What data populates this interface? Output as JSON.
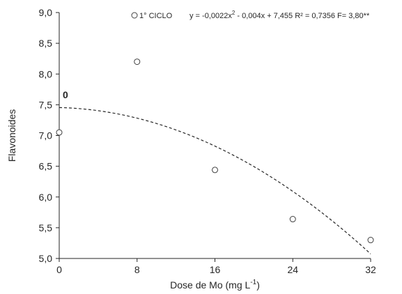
{
  "chart_data": {
    "type": "scatter",
    "title": "",
    "xlabel": "Dose de Mo (mg L",
    "xlabel_sup": "-1",
    "xlabel_close": ")",
    "ylabel": "Flavonoides",
    "xlim": [
      0,
      32
    ],
    "ylim": [
      5.0,
      9.0
    ],
    "xticks": [
      0,
      8,
      16,
      24,
      32
    ],
    "yticks": [
      5.0,
      5.5,
      6.0,
      6.5,
      7.0,
      7.5,
      8.0,
      8.5,
      9.0
    ],
    "ytick_labels": [
      "5,0",
      "5,5",
      "6,0",
      "6,5",
      "7,0",
      "7,5",
      "8,0",
      "8,5",
      "9,0"
    ],
    "grid": false,
    "legend_position": "top",
    "series": [
      {
        "name": "1° CICLO",
        "marker": "open-circle",
        "x": [
          0,
          8,
          16,
          24,
          32
        ],
        "y": [
          7.05,
          8.2,
          6.44,
          5.64,
          5.3
        ]
      }
    ],
    "fit": {
      "style": "dashed",
      "coefficients": {
        "a": -0.0022,
        "b": -0.004,
        "c": 7.455
      },
      "x_range": [
        0,
        32
      ],
      "eq_part1": "y = -0,0022x",
      "eq_sup": "2",
      "eq_part2": " - 0,004x + 7,455 R² = 0,7356 F= 3,80**"
    },
    "annotation": "0",
    "colors": {
      "axis": "#262626",
      "marker_stroke": "#404040",
      "fit_line": "#262626"
    }
  }
}
